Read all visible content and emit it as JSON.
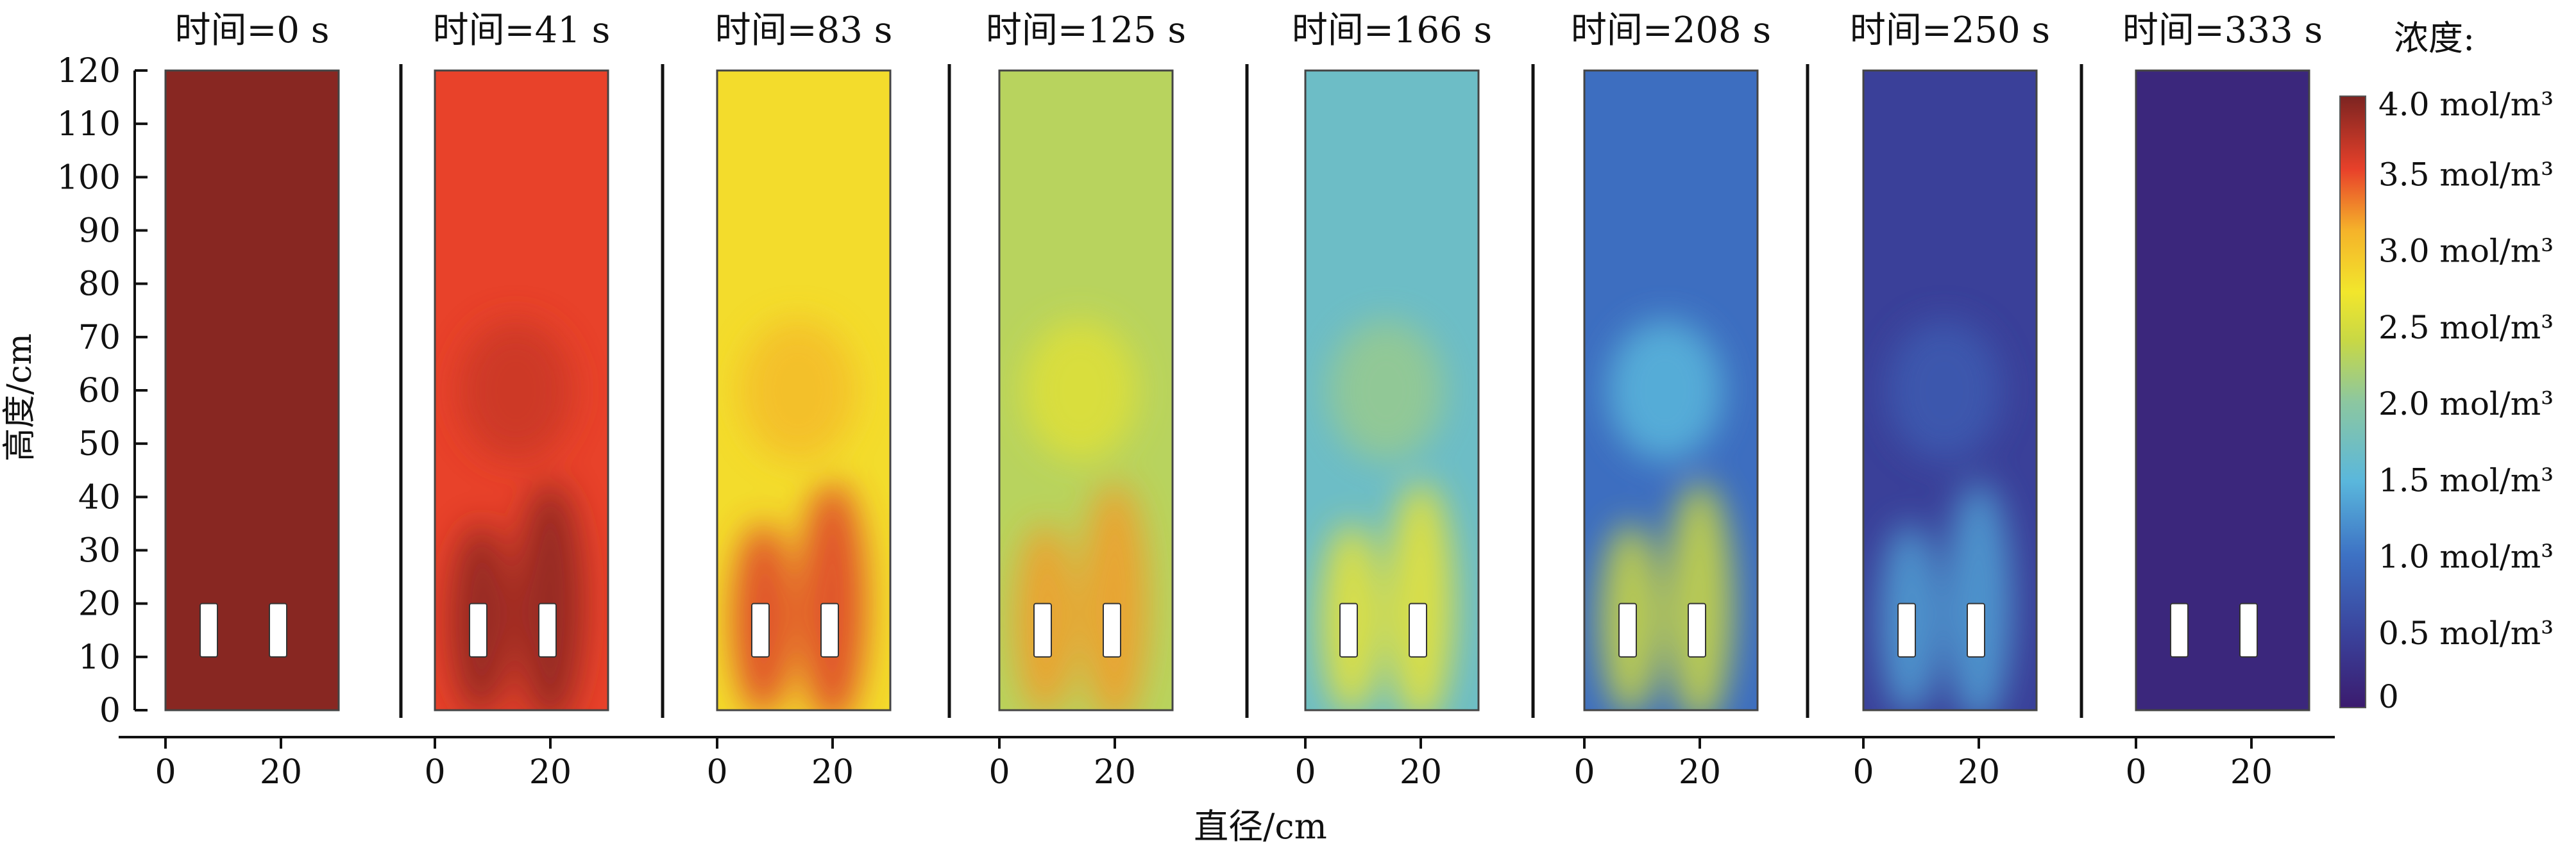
{
  "chart_data": {
    "type": "heatmap",
    "xlabel": "直径/cm",
    "ylabel": "高度/cm",
    "colorbar_label": "浓度:",
    "colormap": [
      "#3b1b6e",
      "#3a3f98",
      "#3d72c4",
      "#5ab7dc",
      "#8cc7a0",
      "#c8d845",
      "#f2e62c",
      "#f5b32a",
      "#e8412a",
      "#7c2421"
    ],
    "colorbar_ticks": [
      "0",
      "0.5 mol/m³",
      "1.0 mol/m³",
      "1.5 mol/m³",
      "2.0 mol/m³",
      "2.5 mol/m³",
      "3.0 mol/m³",
      "3.5 mol/m³",
      "4.0 mol/m³"
    ],
    "colorbar_tick_values": [
      0,
      0.5,
      1.0,
      1.5,
      2.0,
      2.5,
      3.0,
      3.5,
      4.0
    ],
    "colorbar_range": [
      0,
      4
    ],
    "ylim": [
      0,
      120
    ],
    "y_ticks": [
      0,
      10,
      20,
      30,
      40,
      50,
      60,
      70,
      80,
      90,
      100,
      110,
      120
    ],
    "xlim": [
      0,
      30
    ],
    "x_ticks": [
      0,
      20
    ],
    "panels": [
      {
        "label": "时间=0 s",
        "time_s": 0,
        "mean": 3.95,
        "dark_zone": 3.95
      },
      {
        "label": "时间=41 s",
        "time_s": 41,
        "mean": 3.55,
        "dark_zone": 3.95
      },
      {
        "label": "时间=83 s",
        "time_s": 83,
        "mean": 2.75,
        "dark_zone": 3.6
      },
      {
        "label": "时间=125 s",
        "time_s": 125,
        "mean": 2.1,
        "dark_zone": 3.2
      },
      {
        "label": "时间=166 s",
        "time_s": 166,
        "mean": 1.5,
        "dark_zone": 2.6
      },
      {
        "label": "时间=208 s",
        "time_s": 208,
        "mean": 0.85,
        "dark_zone": 2.3
      },
      {
        "label": "时间=250 s",
        "time_s": 250,
        "mean": 0.45,
        "dark_zone": 1.2
      },
      {
        "label": "时间=333 s",
        "time_s": 333,
        "mean": 0.15,
        "dark_zone": 0.15
      }
    ]
  }
}
